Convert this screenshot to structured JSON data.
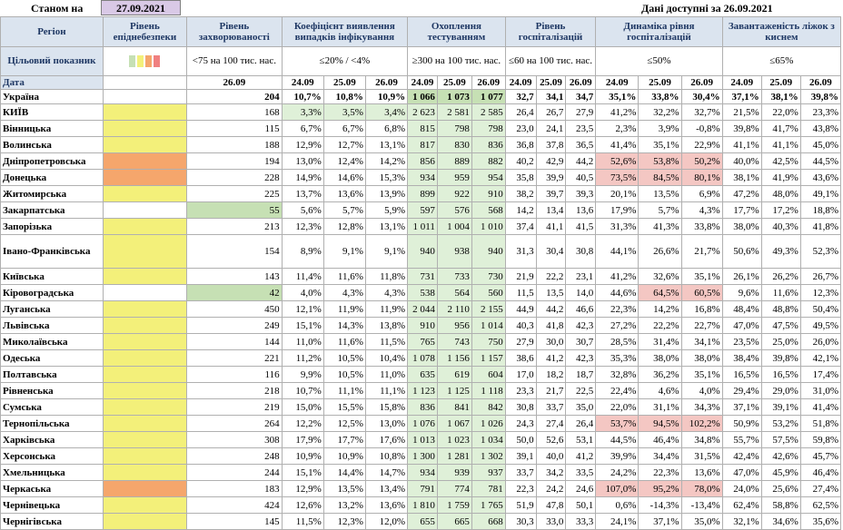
{
  "header": {
    "as_of_label": "Станом на",
    "as_of_date": "27.09.2021",
    "data_available": "Дані доступні за 26.09.2021"
  },
  "columns": {
    "region": "Регіон",
    "risk": "Рівень епіднебезпеки",
    "morbidity": "Рівень захворюваності",
    "detection": "Коефіцієнт виявлення випадків інфікування",
    "testing": "Охоплення тестуванням",
    "hosp": "Рівень госпіталізацій",
    "hosp_dyn": "Динаміка рівня госпіталізацій",
    "oxygen": "Завантаженість ліжок з киснем"
  },
  "targets": {
    "label": "Цільовий показник",
    "morbidity": "<75 на 100 тис. нас.",
    "detection": "≤20% / <4%",
    "testing": "≥300 на 100 тис. нас.",
    "hosp": "≤60 на 100 тис. нас.",
    "hosp_dyn": "≤50%",
    "oxygen": "≤65%",
    "swatch_colors": [
      "#c6e0b4",
      "#f3f07a",
      "#f5a66c",
      "#f08080"
    ]
  },
  "dates": {
    "label": "Дата",
    "morbidity": "26.09",
    "triple": [
      "24.09",
      "25.09",
      "26.09"
    ]
  },
  "rows": [
    {
      "name": "Україна",
      "risk": "",
      "risk_color": "",
      "m": "204",
      "d": [
        "10,7%",
        "10,8%",
        "10,9%"
      ],
      "t": [
        "1 066",
        "1 073",
        "1 077"
      ],
      "h": [
        "32,7",
        "34,1",
        "34,7"
      ],
      "hd": [
        "35,1%",
        "33,8%",
        "30,4%"
      ],
      "o": [
        "37,1%",
        "38,1%",
        "39,8%"
      ],
      "dc": [
        "",
        "",
        ""
      ],
      "tc": [
        "gd",
        "gd",
        "gd"
      ],
      "hdc": [
        "",
        "",
        ""
      ]
    },
    {
      "name": "КИЇВ",
      "risk": "",
      "risk_color": "y",
      "m": "168",
      "d": [
        "3,3%",
        "3,5%",
        "3,4%"
      ],
      "t": [
        "2 623",
        "2 581",
        "2 585"
      ],
      "h": [
        "26,4",
        "26,7",
        "27,9"
      ],
      "hd": [
        "41,2%",
        "32,2%",
        "32,7%"
      ],
      "o": [
        "21,5%",
        "22,0%",
        "23,3%"
      ],
      "dc": [
        "g",
        "g",
        "g"
      ],
      "tc": [
        "g",
        "g",
        "g"
      ],
      "hdc": [
        "",
        "",
        ""
      ]
    },
    {
      "name": "Вінницька",
      "risk": "",
      "risk_color": "y",
      "m": "115",
      "d": [
        "6,7%",
        "6,7%",
        "6,8%"
      ],
      "t": [
        "815",
        "798",
        "798"
      ],
      "h": [
        "23,0",
        "24,1",
        "23,5"
      ],
      "hd": [
        "2,3%",
        "3,9%",
        "-0,8%"
      ],
      "o": [
        "39,8%",
        "41,7%",
        "43,8%"
      ],
      "dc": [
        "",
        "",
        ""
      ],
      "tc": [
        "g",
        "g",
        "g"
      ],
      "hdc": [
        "",
        "",
        ""
      ]
    },
    {
      "name": "Волинська",
      "risk": "",
      "risk_color": "y",
      "m": "188",
      "d": [
        "12,9%",
        "12,7%",
        "13,1%"
      ],
      "t": [
        "817",
        "830",
        "836"
      ],
      "h": [
        "36,8",
        "37,8",
        "36,5"
      ],
      "hd": [
        "41,4%",
        "35,1%",
        "22,9%"
      ],
      "o": [
        "41,1%",
        "41,1%",
        "45,0%"
      ],
      "dc": [
        "",
        "",
        ""
      ],
      "tc": [
        "g",
        "g",
        "g"
      ],
      "hdc": [
        "",
        "",
        ""
      ]
    },
    {
      "name": "Дніпропетровська",
      "risk": "",
      "risk_color": "o",
      "m": "194",
      "d": [
        "13,0%",
        "12,4%",
        "14,2%"
      ],
      "t": [
        "856",
        "889",
        "882"
      ],
      "h": [
        "40,2",
        "42,9",
        "44,2"
      ],
      "hd": [
        "52,6%",
        "53,8%",
        "50,2%"
      ],
      "o": [
        "40,0%",
        "42,5%",
        "44,5%"
      ],
      "dc": [
        "",
        "",
        ""
      ],
      "tc": [
        "g",
        "g",
        "g"
      ],
      "hdc": [
        "r",
        "r",
        "r"
      ]
    },
    {
      "name": "Донецька",
      "risk": "",
      "risk_color": "o",
      "m": "228",
      "d": [
        "14,9%",
        "14,6%",
        "15,3%"
      ],
      "t": [
        "934",
        "959",
        "954"
      ],
      "h": [
        "35,8",
        "39,9",
        "40,5"
      ],
      "hd": [
        "73,5%",
        "84,5%",
        "80,1%"
      ],
      "o": [
        "38,1%",
        "41,9%",
        "43,6%"
      ],
      "dc": [
        "",
        "",
        ""
      ],
      "tc": [
        "g",
        "g",
        "g"
      ],
      "hdc": [
        "r",
        "r",
        "r"
      ]
    },
    {
      "name": "Житомирська",
      "risk": "",
      "risk_color": "y",
      "m": "225",
      "d": [
        "13,7%",
        "13,6%",
        "13,9%"
      ],
      "t": [
        "899",
        "922",
        "910"
      ],
      "h": [
        "38,2",
        "39,7",
        "39,3"
      ],
      "hd": [
        "20,1%",
        "13,5%",
        "6,9%"
      ],
      "o": [
        "47,2%",
        "48,0%",
        "49,1%"
      ],
      "dc": [
        "",
        "",
        ""
      ],
      "tc": [
        "g",
        "g",
        "g"
      ],
      "hdc": [
        "",
        "",
        ""
      ]
    },
    {
      "name": "Закарпатська",
      "risk": "55",
      "risk_color": "lg",
      "m": "",
      "d": [
        "5,6%",
        "5,7%",
        "5,9%"
      ],
      "t": [
        "597",
        "576",
        "568"
      ],
      "h": [
        "14,2",
        "13,4",
        "13,6"
      ],
      "hd": [
        "17,9%",
        "5,7%",
        "4,3%"
      ],
      "o": [
        "17,7%",
        "17,2%",
        "18,8%"
      ],
      "dc": [
        "",
        "",
        ""
      ],
      "tc": [
        "g",
        "g",
        "g"
      ],
      "hdc": [
        "",
        "",
        ""
      ]
    },
    {
      "name": "Запорізька",
      "risk": "",
      "risk_color": "y",
      "m": "213",
      "d": [
        "12,3%",
        "12,8%",
        "13,1%"
      ],
      "t": [
        "1 011",
        "1 004",
        "1 010"
      ],
      "h": [
        "37,4",
        "41,1",
        "41,5"
      ],
      "hd": [
        "31,3%",
        "41,3%",
        "33,8%"
      ],
      "o": [
        "38,0%",
        "40,3%",
        "41,8%"
      ],
      "dc": [
        "",
        "",
        ""
      ],
      "tc": [
        "g",
        "g",
        "g"
      ],
      "hdc": [
        "",
        "",
        ""
      ]
    },
    {
      "name": "Івано-Франківська",
      "risk": "",
      "risk_color": "y",
      "m": "154",
      "d": [
        "8,9%",
        "9,1%",
        "9,1%"
      ],
      "t": [
        "940",
        "938",
        "940"
      ],
      "h": [
        "31,3",
        "30,4",
        "30,8"
      ],
      "hd": [
        "44,1%",
        "26,6%",
        "21,7%"
      ],
      "o": [
        "50,6%",
        "49,3%",
        "52,3%"
      ],
      "dc": [
        "",
        "",
        ""
      ],
      "tc": [
        "g",
        "g",
        "g"
      ],
      "hdc": [
        "",
        "",
        ""
      ],
      "tall": true
    },
    {
      "name": "Київська",
      "risk": "",
      "risk_color": "y",
      "m": "143",
      "d": [
        "11,4%",
        "11,6%",
        "11,8%"
      ],
      "t": [
        "731",
        "733",
        "730"
      ],
      "h": [
        "21,9",
        "22,2",
        "23,1"
      ],
      "hd": [
        "41,2%",
        "32,6%",
        "35,1%"
      ],
      "o": [
        "26,1%",
        "26,2%",
        "26,7%"
      ],
      "dc": [
        "",
        "",
        ""
      ],
      "tc": [
        "g",
        "g",
        "g"
      ],
      "hdc": [
        "",
        "",
        ""
      ]
    },
    {
      "name": "Кіровоградська",
      "risk": "42",
      "risk_color": "lg",
      "m": "",
      "d": [
        "4,0%",
        "4,3%",
        "4,3%"
      ],
      "t": [
        "538",
        "564",
        "560"
      ],
      "h": [
        "11,5",
        "13,5",
        "14,0"
      ],
      "hd": [
        "44,6%",
        "64,5%",
        "60,5%"
      ],
      "o": [
        "9,6%",
        "11,6%",
        "12,3%"
      ],
      "dc": [
        "",
        "",
        ""
      ],
      "tc": [
        "g",
        "g",
        "g"
      ],
      "hdc": [
        "",
        "r",
        "r"
      ],
      "namecolor": "o"
    },
    {
      "name": "Луганська",
      "risk": "",
      "risk_color": "y",
      "m": "450",
      "d": [
        "12,1%",
        "11,9%",
        "11,9%"
      ],
      "t": [
        "2 044",
        "2 110",
        "2 155"
      ],
      "h": [
        "44,9",
        "44,2",
        "46,6"
      ],
      "hd": [
        "22,3%",
        "14,2%",
        "16,8%"
      ],
      "o": [
        "48,4%",
        "48,8%",
        "50,4%"
      ],
      "dc": [
        "",
        "",
        ""
      ],
      "tc": [
        "g",
        "g",
        "g"
      ],
      "hdc": [
        "",
        "",
        ""
      ]
    },
    {
      "name": "Львівська",
      "risk": "",
      "risk_color": "y",
      "m": "249",
      "d": [
        "15,1%",
        "14,3%",
        "13,8%"
      ],
      "t": [
        "910",
        "956",
        "1 014"
      ],
      "h": [
        "40,3",
        "41,8",
        "42,3"
      ],
      "hd": [
        "27,2%",
        "22,2%",
        "22,7%"
      ],
      "o": [
        "47,0%",
        "47,5%",
        "49,5%"
      ],
      "dc": [
        "",
        "",
        ""
      ],
      "tc": [
        "g",
        "g",
        "g"
      ],
      "hdc": [
        "",
        "",
        ""
      ]
    },
    {
      "name": "Миколаївська",
      "risk": "",
      "risk_color": "y",
      "m": "144",
      "d": [
        "11,0%",
        "11,6%",
        "11,5%"
      ],
      "t": [
        "765",
        "743",
        "750"
      ],
      "h": [
        "27,9",
        "30,0",
        "30,7"
      ],
      "hd": [
        "28,5%",
        "31,4%",
        "34,1%"
      ],
      "o": [
        "23,5%",
        "25,0%",
        "26,0%"
      ],
      "dc": [
        "",
        "",
        ""
      ],
      "tc": [
        "g",
        "g",
        "g"
      ],
      "hdc": [
        "",
        "",
        ""
      ]
    },
    {
      "name": "Одеська",
      "risk": "",
      "risk_color": "y",
      "m": "221",
      "d": [
        "11,2%",
        "10,5%",
        "10,4%"
      ],
      "t": [
        "1 078",
        "1 156",
        "1 157"
      ],
      "h": [
        "38,6",
        "41,2",
        "42,3"
      ],
      "hd": [
        "35,3%",
        "38,0%",
        "38,0%"
      ],
      "o": [
        "38,4%",
        "39,8%",
        "42,1%"
      ],
      "dc": [
        "",
        "",
        ""
      ],
      "tc": [
        "g",
        "g",
        "g"
      ],
      "hdc": [
        "",
        "",
        ""
      ]
    },
    {
      "name": "Полтавська",
      "risk": "",
      "risk_color": "y",
      "m": "116",
      "d": [
        "9,9%",
        "10,5%",
        "11,0%"
      ],
      "t": [
        "635",
        "619",
        "604"
      ],
      "h": [
        "17,0",
        "18,2",
        "18,7"
      ],
      "hd": [
        "32,8%",
        "36,2%",
        "35,1%"
      ],
      "o": [
        "16,5%",
        "16,5%",
        "17,4%"
      ],
      "dc": [
        "",
        "",
        ""
      ],
      "tc": [
        "g",
        "g",
        "g"
      ],
      "hdc": [
        "",
        "",
        ""
      ]
    },
    {
      "name": "Рівненська",
      "risk": "",
      "risk_color": "y",
      "m": "218",
      "d": [
        "10,7%",
        "11,1%",
        "11,1%"
      ],
      "t": [
        "1 123",
        "1 125",
        "1 118"
      ],
      "h": [
        "23,3",
        "21,7",
        "22,5"
      ],
      "hd": [
        "22,4%",
        "4,6%",
        "4,0%"
      ],
      "o": [
        "29,4%",
        "29,0%",
        "31,0%"
      ],
      "dc": [
        "",
        "",
        ""
      ],
      "tc": [
        "g",
        "g",
        "g"
      ],
      "hdc": [
        "",
        "",
        ""
      ]
    },
    {
      "name": "Сумська",
      "risk": "",
      "risk_color": "y",
      "m": "219",
      "d": [
        "15,0%",
        "15,5%",
        "15,8%"
      ],
      "t": [
        "836",
        "841",
        "842"
      ],
      "h": [
        "30,8",
        "33,7",
        "35,0"
      ],
      "hd": [
        "22,0%",
        "31,1%",
        "34,3%"
      ],
      "o": [
        "37,1%",
        "39,1%",
        "41,4%"
      ],
      "dc": [
        "",
        "",
        ""
      ],
      "tc": [
        "g",
        "g",
        "g"
      ],
      "hdc": [
        "",
        "",
        ""
      ]
    },
    {
      "name": "Тернопільська",
      "risk": "",
      "risk_color": "y",
      "m": "264",
      "d": [
        "12,2%",
        "12,5%",
        "13,0%"
      ],
      "t": [
        "1 076",
        "1 067",
        "1 026"
      ],
      "h": [
        "24,3",
        "27,4",
        "26,4"
      ],
      "hd": [
        "53,7%",
        "94,5%",
        "102,2%"
      ],
      "o": [
        "50,9%",
        "53,2%",
        "51,8%"
      ],
      "dc": [
        "",
        "",
        ""
      ],
      "tc": [
        "g",
        "g",
        "g"
      ],
      "hdc": [
        "r",
        "r",
        "r"
      ]
    },
    {
      "name": "Харківська",
      "risk": "",
      "risk_color": "y",
      "m": "308",
      "d": [
        "17,9%",
        "17,7%",
        "17,6%"
      ],
      "t": [
        "1 013",
        "1 023",
        "1 034"
      ],
      "h": [
        "50,0",
        "52,6",
        "53,1"
      ],
      "hd": [
        "44,5%",
        "46,4%",
        "34,8%"
      ],
      "o": [
        "55,7%",
        "57,5%",
        "59,8%"
      ],
      "dc": [
        "",
        "",
        ""
      ],
      "tc": [
        "g",
        "g",
        "g"
      ],
      "hdc": [
        "",
        "",
        ""
      ]
    },
    {
      "name": "Херсонська",
      "risk": "",
      "risk_color": "y",
      "m": "248",
      "d": [
        "10,9%",
        "10,9%",
        "10,8%"
      ],
      "t": [
        "1 300",
        "1 281",
        "1 302"
      ],
      "h": [
        "39,1",
        "40,0",
        "41,2"
      ],
      "hd": [
        "39,9%",
        "34,4%",
        "31,5%"
      ],
      "o": [
        "42,4%",
        "42,6%",
        "45,7%"
      ],
      "dc": [
        "",
        "",
        ""
      ],
      "tc": [
        "g",
        "g",
        "g"
      ],
      "hdc": [
        "",
        "",
        ""
      ]
    },
    {
      "name": "Хмельницька",
      "risk": "",
      "risk_color": "y",
      "m": "244",
      "d": [
        "15,1%",
        "14,4%",
        "14,7%"
      ],
      "t": [
        "934",
        "939",
        "937"
      ],
      "h": [
        "33,7",
        "34,2",
        "33,5"
      ],
      "hd": [
        "24,2%",
        "22,3%",
        "13,6%"
      ],
      "o": [
        "47,0%",
        "45,9%",
        "46,4%"
      ],
      "dc": [
        "",
        "",
        ""
      ],
      "tc": [
        "g",
        "g",
        "g"
      ],
      "hdc": [
        "",
        "",
        ""
      ]
    },
    {
      "name": "Черкаська",
      "risk": "",
      "risk_color": "o",
      "m": "183",
      "d": [
        "12,9%",
        "13,5%",
        "13,4%"
      ],
      "t": [
        "791",
        "774",
        "781"
      ],
      "h": [
        "22,3",
        "24,2",
        "24,6"
      ],
      "hd": [
        "107,0%",
        "95,2%",
        "78,0%"
      ],
      "o": [
        "24,0%",
        "25,6%",
        "27,4%"
      ],
      "dc": [
        "",
        "",
        ""
      ],
      "tc": [
        "g",
        "g",
        "g"
      ],
      "hdc": [
        "r",
        "r",
        "r"
      ]
    },
    {
      "name": "Чернівецька",
      "risk": "",
      "risk_color": "y",
      "m": "424",
      "d": [
        "12,6%",
        "13,2%",
        "13,6%"
      ],
      "t": [
        "1 810",
        "1 759",
        "1 765"
      ],
      "h": [
        "51,9",
        "47,8",
        "50,1"
      ],
      "hd": [
        "0,6%",
        "-14,3%",
        "-13,4%"
      ],
      "o": [
        "62,4%",
        "58,8%",
        "62,5%"
      ],
      "dc": [
        "",
        "",
        ""
      ],
      "tc": [
        "g",
        "g",
        "g"
      ],
      "hdc": [
        "",
        "",
        ""
      ]
    },
    {
      "name": "Чернігівська",
      "risk": "",
      "risk_color": "y",
      "m": "145",
      "d": [
        "11,5%",
        "12,3%",
        "12,0%"
      ],
      "t": [
        "655",
        "665",
        "668"
      ],
      "h": [
        "30,3",
        "33,0",
        "33,3"
      ],
      "hd": [
        "24,1%",
        "37,1%",
        "35,0%"
      ],
      "o": [
        "32,1%",
        "34,6%",
        "35,6%"
      ],
      "dc": [
        "",
        "",
        ""
      ],
      "tc": [
        "g",
        "g",
        "g"
      ],
      "hdc": [
        "",
        "",
        ""
      ]
    }
  ]
}
